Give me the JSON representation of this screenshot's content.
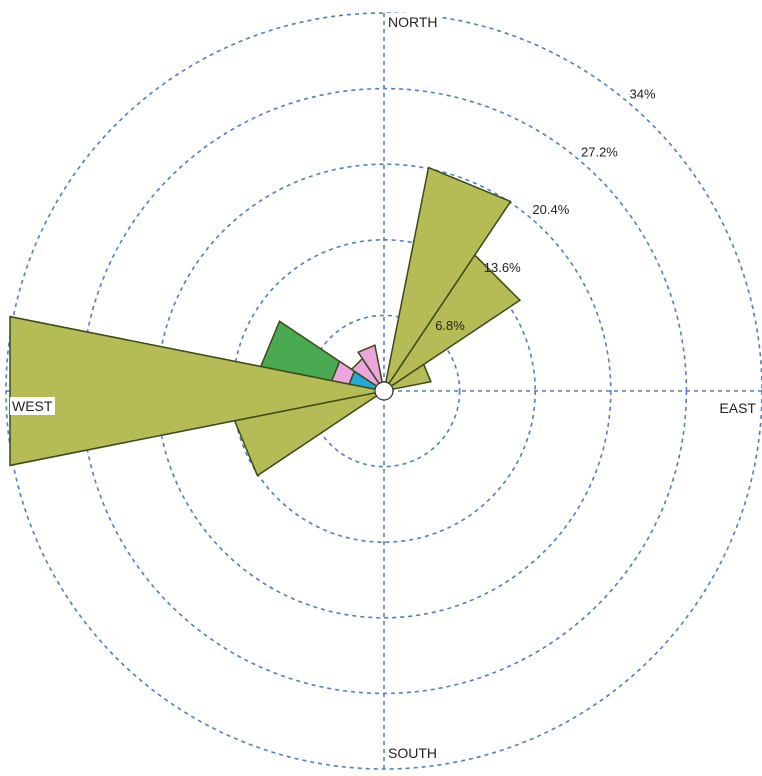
{
  "chart_data": {
    "type": "wind-rose",
    "title": "",
    "directions": {
      "north": "NORTH",
      "east": "EAST",
      "south": "SOUTH",
      "west": "WEST"
    },
    "ring_labels": [
      "6.8%",
      "13.6%",
      "20.4%",
      "27.2%",
      "34%"
    ],
    "ring_values": [
      6.8,
      13.6,
      20.4,
      27.2,
      34
    ],
    "max_value": 34,
    "grid": true,
    "colors": {
      "olive": "#b5bb55",
      "green": "#4aaa52",
      "pink": "#eaa6dd",
      "blue": "#23a8d8"
    },
    "sectors": [
      {
        "center_deg": 22.5,
        "segments": [
          {
            "color": "olive",
            "value": 20.5
          }
        ]
      },
      {
        "center_deg": 45,
        "segments": [
          {
            "color": "olive",
            "value": 14.7
          }
        ]
      },
      {
        "center_deg": 67.5,
        "segments": [
          {
            "color": "olive",
            "value": 4.3
          }
        ]
      },
      {
        "center_deg": 247.5,
        "segments": [
          {
            "color": "olive",
            "value": 13.7
          }
        ]
      },
      {
        "center_deg": 270,
        "segments": [
          {
            "color": "olive",
            "value": 34.3
          }
        ]
      },
      {
        "center_deg": 292.5,
        "segments": [
          {
            "color": "blue",
            "value": 3.2
          },
          {
            "color": "pink",
            "value": 1.6
          },
          {
            "color": "green",
            "value": 6.5
          }
        ]
      },
      {
        "center_deg": 315,
        "segments": [
          {
            "color": "pink",
            "value": 3.5
          }
        ]
      },
      {
        "center_deg": 337.5,
        "segments": [
          {
            "color": "pink",
            "value": 4.2
          }
        ]
      }
    ]
  }
}
